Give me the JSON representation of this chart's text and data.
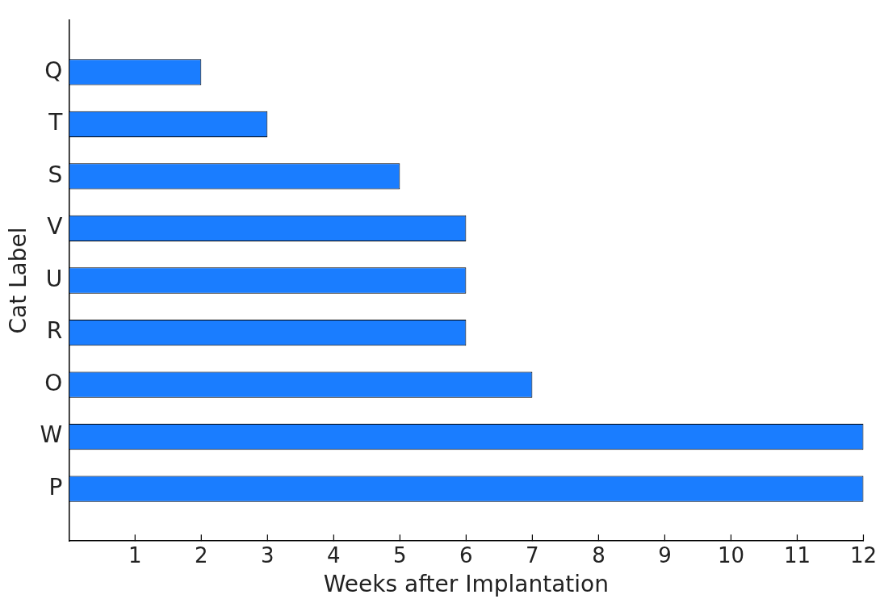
{
  "chart_data": {
    "type": "bar",
    "orientation": "horizontal",
    "xlabel": "Weeks after Implantation",
    "ylabel": "Cat Label",
    "categories": [
      "Q",
      "T",
      "S",
      "V",
      "U",
      "R",
      "O",
      "W",
      "P"
    ],
    "values": [
      2,
      3,
      5,
      6,
      6,
      6,
      7,
      12,
      12
    ],
    "color": "#1a7dff",
    "xlim": [
      0,
      12
    ],
    "xticks": [
      1,
      2,
      3,
      4,
      5,
      6,
      7,
      8,
      9,
      10,
      11,
      12
    ],
    "grid": false,
    "legend": false
  }
}
